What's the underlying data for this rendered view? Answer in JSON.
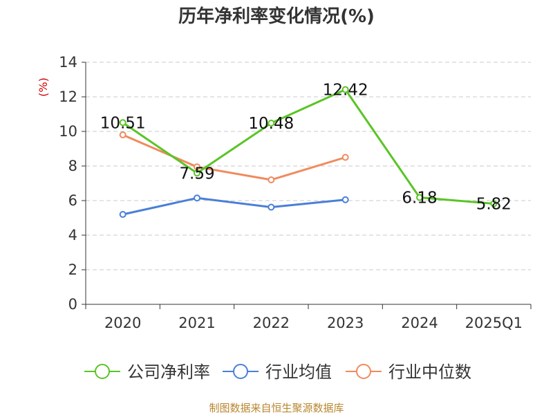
{
  "chart_data": {
    "type": "line",
    "title": "历年净利率变化情况(%)",
    "ylabel": "(%)",
    "xlabel": "",
    "categories": [
      "2020",
      "2021",
      "2022",
      "2023",
      "2024",
      "2025Q1"
    ],
    "ylim": [
      0,
      14
    ],
    "yticks": [
      0,
      2,
      4,
      6,
      8,
      10,
      12,
      14
    ],
    "grid": "horizontal dashed",
    "legend_position": "bottom",
    "series": [
      {
        "name": "公司净利率",
        "color": "#5ac427",
        "values": [
          10.51,
          7.59,
          10.48,
          12.42,
          6.18,
          5.82
        ],
        "labels": [
          "10.51",
          "7.59",
          "10.48",
          "12.42",
          "6.18",
          "5.82"
        ]
      },
      {
        "name": "行业均值",
        "color": "#4a7fd8",
        "values": [
          5.2,
          6.15,
          5.62,
          6.05,
          null,
          null
        ]
      },
      {
        "name": "行业中位数",
        "color": "#f08a5d",
        "values": [
          9.8,
          7.95,
          7.2,
          8.5,
          null,
          null
        ]
      }
    ],
    "source": "制图数据来自恒生聚源数据库"
  }
}
